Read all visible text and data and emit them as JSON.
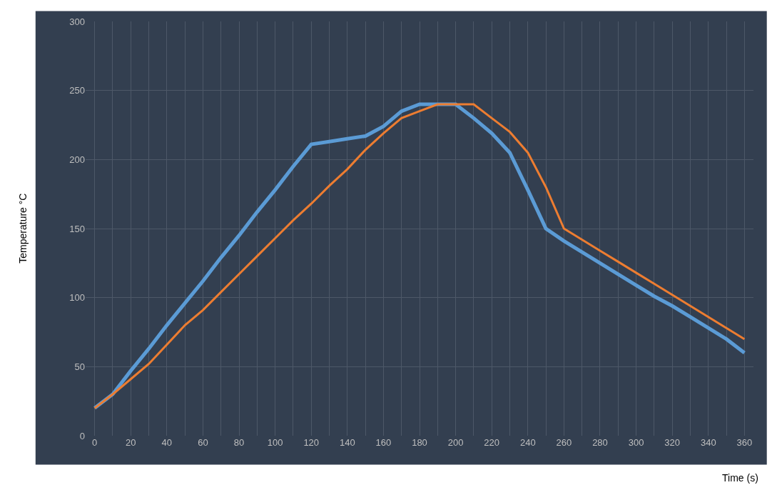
{
  "chart_data": {
    "type": "line",
    "xlabel": "Time (s)",
    "ylabel": "Temperature °C",
    "x": [
      0,
      10,
      20,
      30,
      40,
      50,
      60,
      70,
      80,
      90,
      100,
      110,
      120,
      130,
      140,
      150,
      160,
      170,
      180,
      190,
      200,
      210,
      220,
      230,
      240,
      250,
      260,
      270,
      280,
      290,
      300,
      310,
      320,
      330,
      340,
      350,
      360
    ],
    "series": [
      {
        "color": "#5b9bd5",
        "values": [
          20,
          30,
          47,
          63,
          80,
          96,
          112,
          129,
          145,
          162,
          178,
          195,
          211,
          213,
          215,
          217,
          224,
          235,
          240,
          240,
          240,
          230,
          219,
          205,
          178,
          150,
          141,
          133,
          125,
          117,
          109,
          101,
          94,
          86,
          78,
          70,
          60
        ]
      },
      {
        "color": "#ed7d31",
        "values": [
          20,
          30,
          41,
          52,
          66,
          80,
          91,
          104,
          117,
          130,
          143,
          156,
          168,
          181,
          193,
          207,
          219,
          230,
          235,
          240,
          240,
          240,
          230,
          220,
          205,
          180,
          150,
          142,
          134,
          126,
          118,
          110,
          102,
          94,
          86,
          78,
          70
        ]
      }
    ],
    "xlim": [
      -5,
      365
    ],
    "xticks": [
      0,
      {
        "value": 10,
        "label": null
      },
      20,
      {
        "value": 30,
        "label": null
      },
      40,
      {
        "value": 50,
        "label": null
      },
      60,
      {
        "value": 70,
        "label": null
      },
      80,
      {
        "value": 90,
        "label": null
      },
      100,
      {
        "value": 110,
        "label": null
      },
      120,
      {
        "value": 130,
        "label": null
      },
      140,
      {
        "value": 150,
        "label": null
      },
      160,
      {
        "value": 170,
        "label": null
      },
      180,
      {
        "value": 190,
        "label": null
      },
      200,
      {
        "value": 210,
        "label": null
      },
      220,
      {
        "value": 230,
        "label": null
      },
      240,
      {
        "value": 250,
        "label": null
      },
      260,
      {
        "value": 270,
        "label": null
      },
      280,
      {
        "value": 290,
        "label": null
      },
      300,
      {
        "value": 310,
        "label": null
      },
      320,
      {
        "value": 330,
        "label": null
      },
      340,
      {
        "value": 350,
        "label": null
      },
      360
    ],
    "ylim": [
      0,
      300
    ],
    "yticks": [
      0,
      50,
      100,
      150,
      200,
      250,
      300
    ],
    "grid": true,
    "marker": "none",
    "line_style": "solid"
  }
}
